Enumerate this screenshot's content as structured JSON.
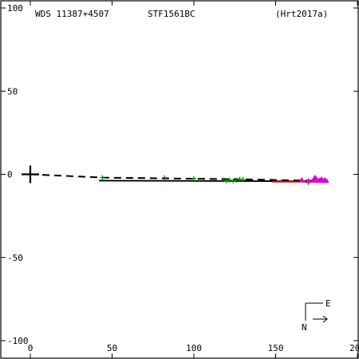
{
  "chart_data": {
    "type": "scatter",
    "header": {
      "wds_id": "WDS 11387+4507",
      "discoverer": "STF1561BC",
      "reference": "(Hrt2017a)"
    },
    "x_ticks": [
      0,
      50,
      100,
      150,
      200
    ],
    "y_ticks": [
      100,
      50,
      0,
      -50,
      -100
    ],
    "x_tick_labels": [
      "0",
      "50",
      "100",
      "150",
      "200"
    ],
    "y_tick_labels": [
      "100",
      "50",
      "0",
      "-50",
      "-100"
    ],
    "xlim": [
      -18,
      200
    ],
    "ylim": [
      -101,
      101
    ],
    "grid": false,
    "primary": [
      0,
      0
    ],
    "orbit_dashed": [
      [
        0,
        0
      ],
      [
        45,
        -2
      ],
      [
        130,
        -3
      ],
      [
        180,
        -4
      ]
    ],
    "solid_fit": [
      [
        42,
        -3.8
      ],
      [
        182,
        -4.2
      ]
    ],
    "red_fit": [
      [
        148,
        -4.3
      ],
      [
        182,
        -4.5
      ]
    ],
    "green_obs": [
      [
        44,
        -2
      ],
      [
        82,
        -2
      ],
      [
        100,
        -2.5
      ],
      [
        118,
        -3.5
      ],
      [
        120,
        -4
      ],
      [
        122,
        -3.5
      ],
      [
        124,
        -4
      ],
      [
        126,
        -3.5
      ],
      [
        128,
        -3
      ],
      [
        130,
        -3
      ],
      [
        170,
        -5
      ]
    ],
    "magenta_obs": [
      [
        166,
        -3.5
      ],
      [
        170,
        -4
      ],
      [
        173,
        -3.5
      ],
      [
        174,
        -2
      ],
      [
        175,
        -3
      ],
      [
        176,
        -4
      ],
      [
        177,
        -3.5
      ],
      [
        178,
        -3
      ],
      [
        179,
        -4
      ],
      [
        180,
        -3.5
      ],
      [
        181,
        -4
      ]
    ],
    "compass": {
      "east_label": "E",
      "north_label": "N"
    },
    "colors": {
      "axis": "#000000",
      "orbit": "#000000",
      "red_fit": "#cc0000",
      "green": "#008800",
      "magenta": "#dd00dd"
    }
  }
}
